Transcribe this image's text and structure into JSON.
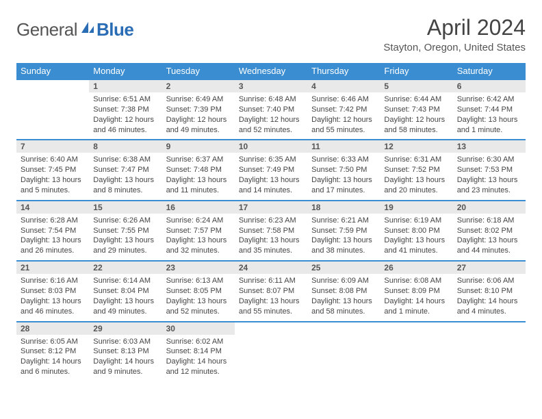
{
  "brand": {
    "text1": "General",
    "text2": "Blue"
  },
  "title": "April 2024",
  "location": "Stayton, Oregon, United States",
  "colors": {
    "header_bg": "#3a8dd0",
    "header_fg": "#ffffff",
    "daynum_bg": "#e9e9e9",
    "cell_border": "#3a8dd0",
    "text": "#444444",
    "logo_gray": "#555555",
    "logo_blue": "#2a6db5"
  },
  "weekdays": [
    "Sunday",
    "Monday",
    "Tuesday",
    "Wednesday",
    "Thursday",
    "Friday",
    "Saturday"
  ],
  "layout": {
    "first_day_column": 1,
    "days_in_month": 30
  },
  "days": [
    {
      "n": 1,
      "sunrise": "6:51 AM",
      "sunset": "7:38 PM",
      "daylight": "12 hours and 46 minutes."
    },
    {
      "n": 2,
      "sunrise": "6:49 AM",
      "sunset": "7:39 PM",
      "daylight": "12 hours and 49 minutes."
    },
    {
      "n": 3,
      "sunrise": "6:48 AM",
      "sunset": "7:40 PM",
      "daylight": "12 hours and 52 minutes."
    },
    {
      "n": 4,
      "sunrise": "6:46 AM",
      "sunset": "7:42 PM",
      "daylight": "12 hours and 55 minutes."
    },
    {
      "n": 5,
      "sunrise": "6:44 AM",
      "sunset": "7:43 PM",
      "daylight": "12 hours and 58 minutes."
    },
    {
      "n": 6,
      "sunrise": "6:42 AM",
      "sunset": "7:44 PM",
      "daylight": "13 hours and 1 minute."
    },
    {
      "n": 7,
      "sunrise": "6:40 AM",
      "sunset": "7:45 PM",
      "daylight": "13 hours and 5 minutes."
    },
    {
      "n": 8,
      "sunrise": "6:38 AM",
      "sunset": "7:47 PM",
      "daylight": "13 hours and 8 minutes."
    },
    {
      "n": 9,
      "sunrise": "6:37 AM",
      "sunset": "7:48 PM",
      "daylight": "13 hours and 11 minutes."
    },
    {
      "n": 10,
      "sunrise": "6:35 AM",
      "sunset": "7:49 PM",
      "daylight": "13 hours and 14 minutes."
    },
    {
      "n": 11,
      "sunrise": "6:33 AM",
      "sunset": "7:50 PM",
      "daylight": "13 hours and 17 minutes."
    },
    {
      "n": 12,
      "sunrise": "6:31 AM",
      "sunset": "7:52 PM",
      "daylight": "13 hours and 20 minutes."
    },
    {
      "n": 13,
      "sunrise": "6:30 AM",
      "sunset": "7:53 PM",
      "daylight": "13 hours and 23 minutes."
    },
    {
      "n": 14,
      "sunrise": "6:28 AM",
      "sunset": "7:54 PM",
      "daylight": "13 hours and 26 minutes."
    },
    {
      "n": 15,
      "sunrise": "6:26 AM",
      "sunset": "7:55 PM",
      "daylight": "13 hours and 29 minutes."
    },
    {
      "n": 16,
      "sunrise": "6:24 AM",
      "sunset": "7:57 PM",
      "daylight": "13 hours and 32 minutes."
    },
    {
      "n": 17,
      "sunrise": "6:23 AM",
      "sunset": "7:58 PM",
      "daylight": "13 hours and 35 minutes."
    },
    {
      "n": 18,
      "sunrise": "6:21 AM",
      "sunset": "7:59 PM",
      "daylight": "13 hours and 38 minutes."
    },
    {
      "n": 19,
      "sunrise": "6:19 AM",
      "sunset": "8:00 PM",
      "daylight": "13 hours and 41 minutes."
    },
    {
      "n": 20,
      "sunrise": "6:18 AM",
      "sunset": "8:02 PM",
      "daylight": "13 hours and 44 minutes."
    },
    {
      "n": 21,
      "sunrise": "6:16 AM",
      "sunset": "8:03 PM",
      "daylight": "13 hours and 46 minutes."
    },
    {
      "n": 22,
      "sunrise": "6:14 AM",
      "sunset": "8:04 PM",
      "daylight": "13 hours and 49 minutes."
    },
    {
      "n": 23,
      "sunrise": "6:13 AM",
      "sunset": "8:05 PM",
      "daylight": "13 hours and 52 minutes."
    },
    {
      "n": 24,
      "sunrise": "6:11 AM",
      "sunset": "8:07 PM",
      "daylight": "13 hours and 55 minutes."
    },
    {
      "n": 25,
      "sunrise": "6:09 AM",
      "sunset": "8:08 PM",
      "daylight": "13 hours and 58 minutes."
    },
    {
      "n": 26,
      "sunrise": "6:08 AM",
      "sunset": "8:09 PM",
      "daylight": "14 hours and 1 minute."
    },
    {
      "n": 27,
      "sunrise": "6:06 AM",
      "sunset": "8:10 PM",
      "daylight": "14 hours and 4 minutes."
    },
    {
      "n": 28,
      "sunrise": "6:05 AM",
      "sunset": "8:12 PM",
      "daylight": "14 hours and 6 minutes."
    },
    {
      "n": 29,
      "sunrise": "6:03 AM",
      "sunset": "8:13 PM",
      "daylight": "14 hours and 9 minutes."
    },
    {
      "n": 30,
      "sunrise": "6:02 AM",
      "sunset": "8:14 PM",
      "daylight": "14 hours and 12 minutes."
    }
  ],
  "labels": {
    "sunrise": "Sunrise:",
    "sunset": "Sunset:",
    "daylight": "Daylight:"
  }
}
